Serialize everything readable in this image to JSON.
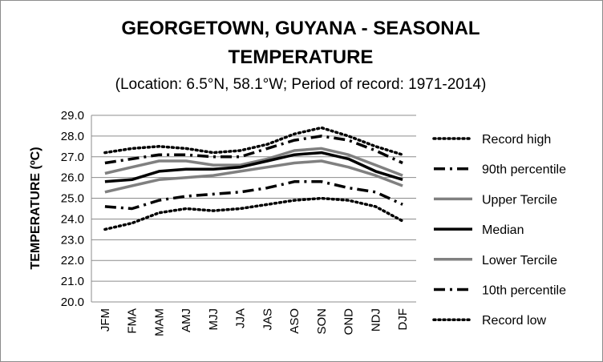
{
  "chart_data": {
    "type": "line",
    "title_line1": "GEORGETOWN, GUYANA - SEASONAL",
    "title_line2": "TEMPERATURE",
    "subtitle": "(Location: 6.5°N, 58.1°W; Period of record: 1971-2014)",
    "ylabel": "TEMPERATURE (ºC)",
    "xlabel": "",
    "ylim": [
      20.0,
      29.0
    ],
    "ytick_step": 1.0,
    "yticks": [
      "20.0",
      "21.0",
      "22.0",
      "23.0",
      "24.0",
      "25.0",
      "26.0",
      "27.0",
      "28.0",
      "29.0"
    ],
    "grid": true,
    "legend_position": "right",
    "categories": [
      "JFM",
      "FMA",
      "MAM",
      "AMJ",
      "MJJ",
      "JJA",
      "JAS",
      "ASO",
      "SON",
      "OND",
      "NDJ",
      "DJF"
    ],
    "series": [
      {
        "name": "Record high",
        "style": "dotted",
        "color": "#000000",
        "values": [
          27.2,
          27.4,
          27.5,
          27.4,
          27.2,
          27.3,
          27.6,
          28.1,
          28.4,
          28.0,
          27.5,
          27.1
        ]
      },
      {
        "name": "90th percentile",
        "style": "dashdot",
        "color": "#000000",
        "values": [
          26.7,
          26.9,
          27.1,
          27.1,
          27.0,
          27.0,
          27.4,
          27.8,
          28.0,
          27.8,
          27.3,
          26.7
        ]
      },
      {
        "name": "Upper Tercile",
        "style": "solid",
        "color": "#808080",
        "values": [
          26.2,
          26.5,
          26.8,
          26.8,
          26.6,
          26.6,
          26.9,
          27.3,
          27.4,
          27.1,
          26.6,
          26.1
        ]
      },
      {
        "name": "Median",
        "style": "solid",
        "color": "#000000",
        "values": [
          25.8,
          25.9,
          26.3,
          26.4,
          26.4,
          26.5,
          26.8,
          27.1,
          27.2,
          26.9,
          26.3,
          25.9
        ]
      },
      {
        "name": "Lower Tercile",
        "style": "solid",
        "color": "#808080",
        "values": [
          25.3,
          25.6,
          25.9,
          26.0,
          26.1,
          26.3,
          26.5,
          26.7,
          26.8,
          26.5,
          26.1,
          25.6
        ]
      },
      {
        "name": "10th percentile",
        "style": "dashdot",
        "color": "#000000",
        "values": [
          24.6,
          24.5,
          24.9,
          25.1,
          25.2,
          25.3,
          25.5,
          25.8,
          25.8,
          25.5,
          25.3,
          24.7
        ]
      },
      {
        "name": "Record low",
        "style": "dotted",
        "color": "#000000",
        "values": [
          23.5,
          23.8,
          24.3,
          24.5,
          24.4,
          24.5,
          24.7,
          24.9,
          25.0,
          24.9,
          24.6,
          23.9
        ]
      }
    ]
  }
}
